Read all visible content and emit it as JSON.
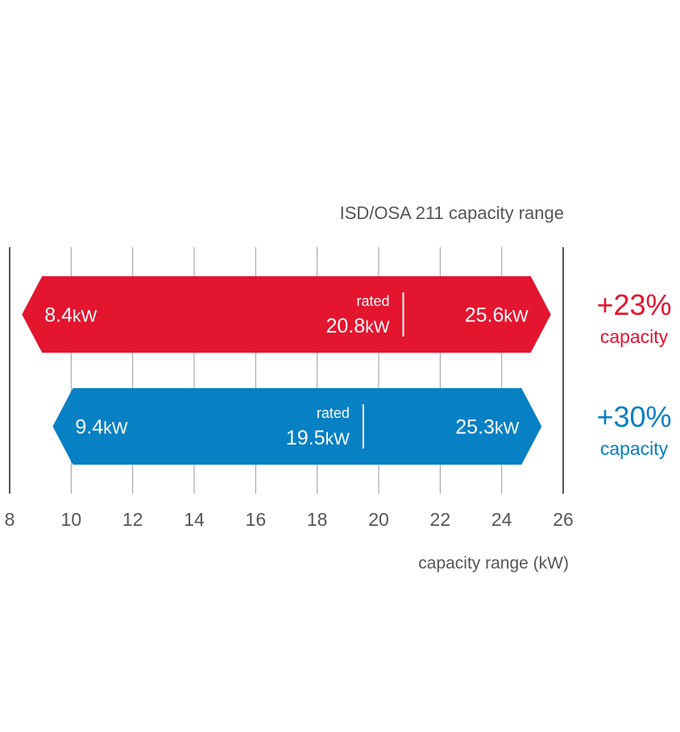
{
  "chart_data": {
    "type": "range-bar",
    "title": "ISD/OSA 211 capacity range",
    "xlabel": "capacity range (kW)",
    "xlim": [
      8,
      26
    ],
    "ticks": [
      "8",
      "10",
      "12",
      "14",
      "16",
      "18",
      "20",
      "22",
      "24",
      "26"
    ],
    "tick_values": [
      8,
      10,
      12,
      14,
      16,
      18,
      20,
      22,
      24,
      26
    ],
    "grid": true,
    "series": [
      {
        "min": 8.4,
        "rated": 20.8,
        "max": 25.6,
        "min_label": "8.4",
        "rated_label": "20.8",
        "max_label": "25.6",
        "unit": "kW",
        "rated_caption": "rated",
        "increase": "+23%",
        "increase_caption": "capacity",
        "color": "#e3152f"
      },
      {
        "min": 9.4,
        "rated": 19.5,
        "max": 25.3,
        "min_label": "9.4",
        "rated_label": "19.5",
        "max_label": "25.3",
        "unit": "kW",
        "rated_caption": "rated",
        "increase": "+30%",
        "increase_caption": "capacity",
        "color": "#0780c4"
      }
    ]
  }
}
